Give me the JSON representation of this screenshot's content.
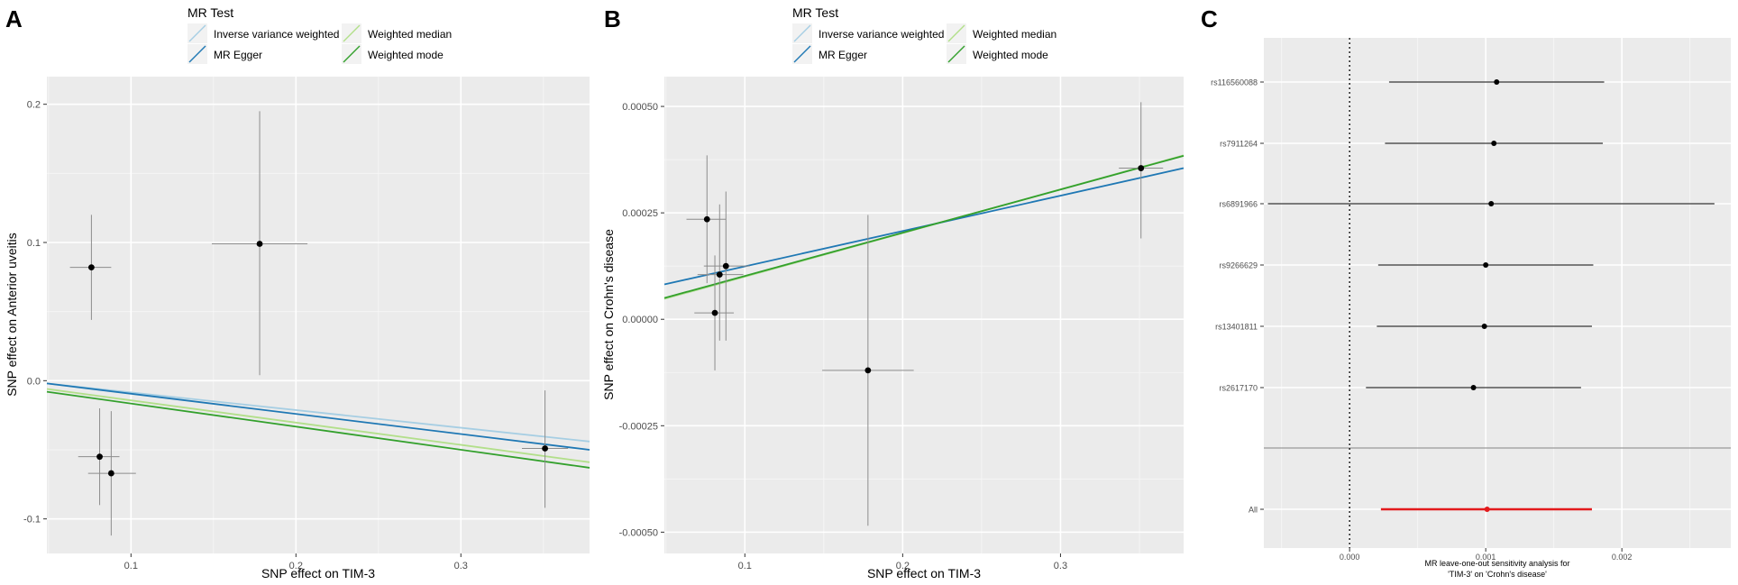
{
  "panels": [
    "A",
    "B",
    "C"
  ],
  "legend": {
    "title": "MR Test",
    "entries": [
      {
        "label": "Inverse variance weighted",
        "color": "#a6cee3"
      },
      {
        "label": "MR Egger",
        "color": "#1f78b4"
      },
      {
        "label": "Weighted median",
        "color": "#b2df8a"
      },
      {
        "label": "Weighted mode",
        "color": "#33a02c"
      }
    ]
  },
  "chart_data": [
    {
      "panel": "A",
      "type": "scatter",
      "xlabel": "SNP effect on TIM-3",
      "ylabel": "SNP effect on Anterior uveitis",
      "xlim": [
        0.049,
        0.378
      ],
      "ylim": [
        -0.125,
        0.22
      ],
      "xticks": [
        {
          "v": 0.1,
          "label": "0.1"
        },
        {
          "v": 0.2,
          "label": "0.2"
        },
        {
          "v": 0.3,
          "label": "0.3"
        }
      ],
      "yticks": [
        {
          "v": 0.2,
          "label": "0.2"
        },
        {
          "v": 0.1,
          "label": "0.1"
        },
        {
          "v": 0.0,
          "label": "0.0"
        },
        {
          "v": -0.1,
          "label": "-0.1"
        }
      ],
      "xgrid_minor": [
        0.05,
        0.15,
        0.25,
        0.35
      ],
      "ygrid_minor": [
        0.15,
        0.05,
        -0.05
      ],
      "points": [
        {
          "x": 0.076,
          "y": 0.082,
          "xlo": 0.063,
          "xhi": 0.088,
          "ylo": 0.044,
          "yhi": 0.12
        },
        {
          "x": 0.178,
          "y": 0.099,
          "xlo": 0.149,
          "xhi": 0.207,
          "ylo": 0.004,
          "yhi": 0.195
        },
        {
          "x": 0.081,
          "y": -0.055,
          "xlo": 0.068,
          "xhi": 0.093,
          "ylo": -0.09,
          "yhi": -0.02
        },
        {
          "x": 0.088,
          "y": -0.067,
          "xlo": 0.074,
          "xhi": 0.103,
          "ylo": -0.112,
          "yhi": -0.022
        },
        {
          "x": 0.351,
          "y": -0.049,
          "xlo": 0.337,
          "xhi": 0.365,
          "ylo": -0.092,
          "yhi": -0.007
        }
      ],
      "lines": [
        {
          "name": "Inverse variance weighted",
          "color": "#a6cee3",
          "x": [
            0.049,
            0.378
          ],
          "y": [
            -0.002,
            -0.044
          ]
        },
        {
          "name": "MR Egger",
          "color": "#1f78b4",
          "x": [
            0.049,
            0.378
          ],
          "y": [
            -0.002,
            -0.05
          ]
        },
        {
          "name": "Weighted median",
          "color": "#b2df8a",
          "x": [
            0.049,
            0.378
          ],
          "y": [
            -0.006,
            -0.059
          ]
        },
        {
          "name": "Weighted mode",
          "color": "#33a02c",
          "x": [
            0.049,
            0.378
          ],
          "y": [
            -0.008,
            -0.063
          ]
        }
      ]
    },
    {
      "panel": "B",
      "type": "scatter",
      "xlabel": "SNP effect on TIM-3",
      "ylabel": "SNP effect on Crohn's disease",
      "xlim": [
        0.049,
        0.378
      ],
      "ylim": [
        -0.00055,
        0.00057
      ],
      "xticks": [
        {
          "v": 0.1,
          "label": "0.1"
        },
        {
          "v": 0.2,
          "label": "0.2"
        },
        {
          "v": 0.3,
          "label": "0.3"
        }
      ],
      "yticks": [
        {
          "v": 0.0005,
          "label": "0.00050"
        },
        {
          "v": 0.00025,
          "label": "0.00025"
        },
        {
          "v": 0.0,
          "label": "0.00000"
        },
        {
          "v": -0.00025,
          "label": "-0.00025"
        },
        {
          "v": -0.0005,
          "label": "-0.00050"
        }
      ],
      "xgrid_minor": [
        0.05,
        0.15,
        0.25,
        0.35
      ],
      "ygrid_minor": [
        0.000375,
        0.000125,
        -0.000125,
        -0.000375
      ],
      "points": [
        {
          "x": 0.076,
          "y": 0.000235,
          "xlo": 0.063,
          "xhi": 0.088,
          "ylo": 8.5e-05,
          "yhi": 0.000385
        },
        {
          "x": 0.088,
          "y": 0.000125,
          "xlo": 0.074,
          "xhi": 0.103,
          "ylo": -5e-05,
          "yhi": 0.0003
        },
        {
          "x": 0.084,
          "y": 0.000105,
          "xlo": 0.07,
          "xhi": 0.099,
          "ylo": -5e-05,
          "yhi": 0.00027
        },
        {
          "x": 0.081,
          "y": 1.5e-05,
          "xlo": 0.068,
          "xhi": 0.093,
          "ylo": -0.00012,
          "yhi": 0.00015
        },
        {
          "x": 0.178,
          "y": -0.00012,
          "xlo": 0.149,
          "xhi": 0.207,
          "ylo": -0.000485,
          "yhi": 0.000245
        },
        {
          "x": 0.351,
          "y": 0.000355,
          "xlo": 0.337,
          "xhi": 0.365,
          "ylo": 0.00019,
          "yhi": 0.00051
        }
      ],
      "lines": [
        {
          "name": "Inverse variance weighted",
          "color": "#a6cee3",
          "x": [
            0.049,
            0.378
          ],
          "y": [
            4.8e-05,
            0.000385
          ]
        },
        {
          "name": "Weighted median",
          "color": "#b2df8a",
          "x": [
            0.049,
            0.378
          ],
          "y": [
            4.8e-05,
            0.000385
          ]
        },
        {
          "name": "MR Egger",
          "color": "#1f78b4",
          "x": [
            0.049,
            0.378
          ],
          "y": [
            8.2e-05,
            0.000355
          ]
        },
        {
          "name": "Weighted mode",
          "color": "#33a02c",
          "x": [
            0.049,
            0.378
          ],
          "y": [
            5e-05,
            0.000384
          ]
        }
      ]
    },
    {
      "panel": "C",
      "type": "forest",
      "title_lines": [
        "MR leave-one-out sensitivity analysis for",
        "'TIM-3' on 'Crohn's disease'"
      ],
      "xlim": [
        -0.00063,
        0.0028
      ],
      "xticks": [
        {
          "v": 0.0,
          "label": "0.000"
        },
        {
          "v": 0.001,
          "label": "0.001"
        },
        {
          "v": 0.002,
          "label": "0.002"
        }
      ],
      "xgrid_minor": [
        -0.0005,
        0.0005,
        0.0015,
        0.0025
      ],
      "rows": [
        {
          "label": "rs116560088",
          "est": 0.00108,
          "lo": 0.00029,
          "hi": 0.00187
        },
        {
          "label": "rs7911264",
          "est": 0.00106,
          "lo": 0.00026,
          "hi": 0.00186
        },
        {
          "label": "rs6891966",
          "est": 0.00104,
          "lo": -0.0006,
          "hi": 0.00268
        },
        {
          "label": "rs9266629",
          "est": 0.001,
          "lo": 0.00021,
          "hi": 0.00179
        },
        {
          "label": "rs13401811",
          "est": 0.00099,
          "lo": 0.0002,
          "hi": 0.00178
        },
        {
          "label": "rs2617170",
          "est": 0.00091,
          "lo": 0.00012,
          "hi": 0.0017
        },
        {
          "label": "All",
          "est": 0.00101,
          "lo": 0.00023,
          "hi": 0.00178,
          "color": "#e31a1c"
        }
      ]
    }
  ]
}
